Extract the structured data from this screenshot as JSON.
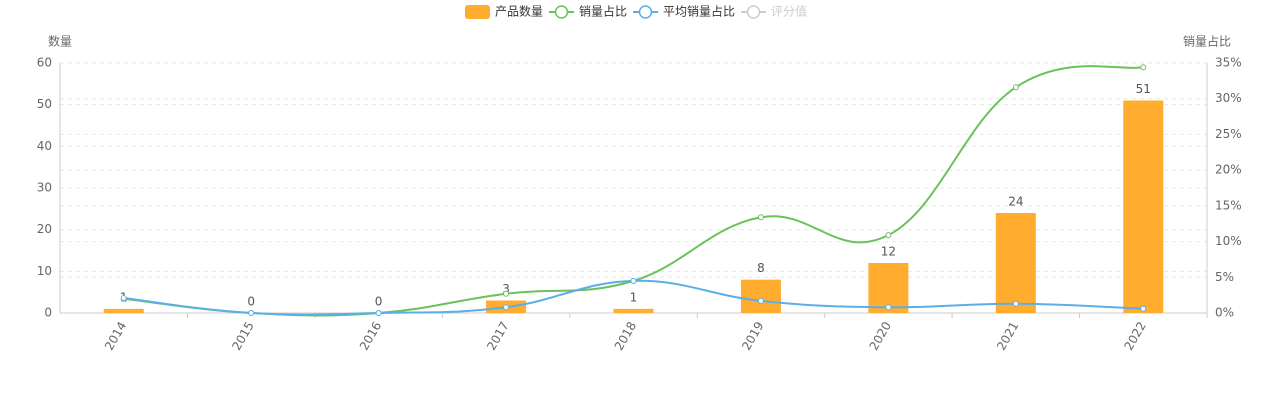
{
  "chart_data": {
    "type": "bar-line",
    "ylabel": "数量",
    "y2label": "销量占比",
    "categories": [
      "2014",
      "2015",
      "2016",
      "2017",
      "2018",
      "2019",
      "2020",
      "2021",
      "2022"
    ],
    "series": [
      {
        "name": "产品数量",
        "type": "bar",
        "color": "#ffac2f",
        "values": [
          1,
          0,
          0,
          3,
          1,
          8,
          12,
          24,
          51
        ]
      },
      {
        "name": "销量占比",
        "type": "line",
        "axis": "y2",
        "color": "#6bc15a",
        "values": [
          2,
          0,
          0,
          2.7,
          4.5,
          13.4,
          10.9,
          31.6,
          34.4
        ]
      },
      {
        "name": "平均销量占比",
        "type": "line",
        "axis": "y2",
        "color": "#5aafe8",
        "values": [
          2.1,
          0,
          0,
          0.8,
          4.5,
          1.7,
          0.8,
          1.3,
          0.6
        ]
      },
      {
        "name": "评分值",
        "type": "line",
        "axis": "y2",
        "color": "#cccccc",
        "hidden": true,
        "values": [
          null,
          null,
          null,
          null,
          null,
          null,
          null,
          null,
          null
        ]
      }
    ],
    "ylim": [
      0,
      60
    ],
    "yticks": [
      0,
      10,
      20,
      30,
      40,
      50,
      60
    ],
    "y2lim": [
      0,
      35
    ],
    "y2ticks": [
      {
        "value": 0,
        "label": "0%"
      },
      {
        "value": 5,
        "label": "5%"
      },
      {
        "value": 10,
        "label": "10%"
      },
      {
        "value": 15,
        "label": "15%"
      },
      {
        "value": 20,
        "label": "20%"
      },
      {
        "value": 25,
        "label": "25%"
      },
      {
        "value": 30,
        "label": "30%"
      },
      {
        "value": 35,
        "label": "35%"
      }
    ],
    "grid": true
  }
}
